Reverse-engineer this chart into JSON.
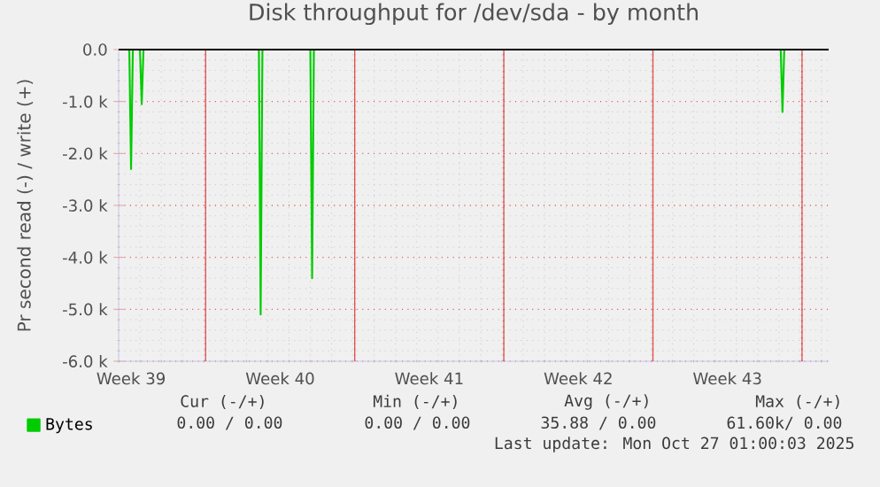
{
  "chart_data": {
    "type": "line",
    "title": "Disk throughput for /dev/sda - by month",
    "ylabel": "Pr second read (-) / write (+)",
    "x": [
      "2025-09-24T22:00",
      "2025-09-25T10:00",
      "2025-09-25T12:00",
      "2025-09-25T14:00",
      "2025-09-25T22:00",
      "2025-09-26T00:00",
      "2025-09-26T02:00",
      "2025-10-01T12:00",
      "2025-10-01T14:00",
      "2025-10-01T16:00",
      "2025-10-03T22:00",
      "2025-10-04T00:00",
      "2025-10-04T02:00",
      "2025-10-26T00:00",
      "2025-10-26T02:00",
      "2025-10-26T04:00",
      "2025-10-28T06:00"
    ],
    "series": [
      {
        "name": "Bytes",
        "color": "#00cc00",
        "values": [
          0,
          0,
          -2300,
          0,
          0,
          -1050,
          0,
          0,
          -5100,
          0,
          0,
          -4400,
          0,
          0,
          -1200,
          0,
          0
        ]
      }
    ],
    "xlim": [
      "2025-09-24T22:00",
      "2025-10-28T06:00"
    ],
    "xticks": [
      {
        "value": "2025-09-25T12:00",
        "label": "Week 39"
      },
      {
        "value": "2025-10-02T12:00",
        "label": "Week 40"
      },
      {
        "value": "2025-10-09T12:00",
        "label": "Week 41"
      },
      {
        "value": "2025-10-16T12:00",
        "label": "Week 42"
      },
      {
        "value": "2025-10-23T12:00",
        "label": "Week 43"
      },
      {
        "value": "2025-09-29",
        "label": null
      },
      {
        "value": "2025-10-06",
        "label": null
      },
      {
        "value": "2025-10-13",
        "label": null
      },
      {
        "value": "2025-10-20",
        "label": null
      },
      {
        "value": "2025-10-27",
        "label": null
      }
    ],
    "ylim": [
      -6000,
      0
    ],
    "yticks": [
      {
        "value": -6000,
        "label": "-6.0 k"
      },
      {
        "value": -5000,
        "label": "-5.0 k"
      },
      {
        "value": -4000,
        "label": "-4.0 k"
      },
      {
        "value": -3000,
        "label": "-3.0 k"
      },
      {
        "value": -2000,
        "label": "-2.0 k"
      },
      {
        "value": -1000,
        "label": "-1.0 k"
      },
      {
        "value": 0,
        "label": "0.0"
      }
    ],
    "ref_lines": [
      {
        "axis": "y",
        "value": 0,
        "color": "#000000"
      }
    ],
    "grid": true,
    "legend": "bottom left",
    "line_style": "solid",
    "marker": "none",
    "annotations": [
      "Cur (-/+)",
      "Min (-/+)",
      "Avg (-/+)",
      "Max (-/+)",
      "0.00 /  0.00",
      "0.00 /  0.00",
      "35.88 /  0.00",
      "61.60k/  0.00",
      "Last update: Mon Oct 27 01:00:03 2025"
    ]
  }
}
